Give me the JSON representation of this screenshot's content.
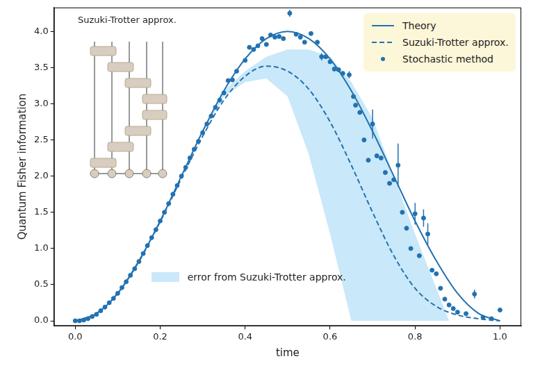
{
  "chart_data": {
    "type": "line",
    "x_label": "time",
    "y_label": "Quantum Fisher information",
    "xlim": [
      -0.05,
      1.05
    ],
    "ylim": [
      -0.07,
      4.33
    ],
    "xticks": [
      {
        "value": 0,
        "label": "0.0"
      },
      {
        "value": 0.2,
        "label": "0.2"
      },
      {
        "value": 0.4,
        "label": "0.4"
      },
      {
        "value": 0.6,
        "label": "0.6"
      },
      {
        "value": 0.8,
        "label": "0.8"
      },
      {
        "value": 1,
        "label": "1.0"
      }
    ],
    "yticks": [
      {
        "value": 0,
        "label": "0.0"
      },
      {
        "value": 0.5,
        "label": "0.5"
      },
      {
        "value": 1,
        "label": "1.0"
      },
      {
        "value": 1.5,
        "label": "1.5"
      },
      {
        "value": 2,
        "label": "2.0"
      },
      {
        "value": 2.5,
        "label": "2.5"
      },
      {
        "value": 3,
        "label": "3.0"
      },
      {
        "value": 3.5,
        "label": "3.5"
      },
      {
        "value": 4,
        "label": "4.0"
      }
    ],
    "grid": false,
    "legend": "upper right",
    "inset": {
      "title": "Suzuki-Trotter approx."
    },
    "error_band": {
      "label": "error from Suzuki-Trotter approx.",
      "color": "#c9e8f9",
      "x": [
        0.3,
        0.35,
        0.4,
        0.45,
        0.5,
        0.55,
        0.6,
        0.65,
        0.7,
        0.75,
        0.8,
        0.85,
        0.88
      ],
      "lower": [
        2.6,
        3.1,
        3.3,
        3.35,
        3.1,
        2.3,
        1.2,
        0.0,
        0.0,
        0.0,
        0.0,
        0.0,
        0.0
      ],
      "upper": [
        2.6,
        3.18,
        3.45,
        3.65,
        3.75,
        3.75,
        3.65,
        3.3,
        2.8,
        2.0,
        1.2,
        0.45,
        0.0
      ]
    },
    "series": [
      {
        "name": "Theory",
        "type": "line",
        "line_style": "solid",
        "color": "#2271b1",
        "x": [
          0,
          0.05,
          0.1,
          0.15,
          0.2,
          0.25,
          0.3,
          0.35,
          0.4,
          0.45,
          0.5,
          0.55,
          0.6,
          0.65,
          0.7,
          0.75,
          0.8,
          0.85,
          0.9,
          0.95,
          1
        ],
        "values": [
          0,
          0.1,
          0.38,
          0.83,
          1.38,
          2.0,
          2.62,
          3.18,
          3.62,
          3.9,
          4.0,
          3.9,
          3.62,
          3.18,
          2.62,
          2.0,
          1.38,
          0.83,
          0.38,
          0.1,
          0
        ]
      },
      {
        "name": "Suzuki-Trotter approx.",
        "type": "line",
        "line_style": "dashed",
        "color": "#2271b1",
        "x": [
          0,
          0.05,
          0.1,
          0.15,
          0.2,
          0.25,
          0.3,
          0.35,
          0.4,
          0.45,
          0.5,
          0.55,
          0.6,
          0.65,
          0.7,
          0.75,
          0.8,
          0.85,
          0.9,
          0.95,
          1
        ],
        "values": [
          0,
          0.1,
          0.38,
          0.82,
          1.37,
          1.97,
          2.55,
          3.05,
          3.38,
          3.52,
          3.45,
          3.2,
          2.75,
          2.15,
          1.5,
          0.9,
          0.45,
          0.2,
          0.08,
          0.03,
          0.0
        ]
      },
      {
        "name": "Stochastic method",
        "type": "scatter",
        "marker": "circle",
        "color": "#2271b1",
        "x": [
          0,
          0.01,
          0.02,
          0.03,
          0.04,
          0.05,
          0.06,
          0.07,
          0.08,
          0.09,
          0.1,
          0.11,
          0.12,
          0.13,
          0.14,
          0.15,
          0.16,
          0.17,
          0.18,
          0.19,
          0.2,
          0.21,
          0.22,
          0.23,
          0.24,
          0.25,
          0.26,
          0.27,
          0.28,
          0.29,
          0.3,
          0.31,
          0.32,
          0.33,
          0.34,
          0.35,
          0.36,
          0.37,
          0.38,
          0.4,
          0.41,
          0.42,
          0.43,
          0.44,
          0.45,
          0.46,
          0.47,
          0.48,
          0.49,
          0.505,
          0.52,
          0.53,
          0.54,
          0.555,
          0.57,
          0.58,
          0.59,
          0.6,
          0.61,
          0.62,
          0.63,
          0.645,
          0.655,
          0.66,
          0.67,
          0.68,
          0.69,
          0.7,
          0.71,
          0.72,
          0.73,
          0.74,
          0.75,
          0.76,
          0.77,
          0.78,
          0.79,
          0.8,
          0.81,
          0.82,
          0.83,
          0.84,
          0.85,
          0.86,
          0.87,
          0.88,
          0.89,
          0.9,
          0.92,
          0.94,
          0.96,
          0.98,
          1
        ],
        "values": [
          0,
          0,
          0.01,
          0.03,
          0.06,
          0.09,
          0.14,
          0.19,
          0.25,
          0.31,
          0.38,
          0.46,
          0.54,
          0.63,
          0.72,
          0.82,
          0.93,
          1.04,
          1.15,
          1.26,
          1.38,
          1.5,
          1.62,
          1.75,
          1.87,
          2.0,
          2.12,
          2.25,
          2.37,
          2.48,
          2.6,
          2.72,
          2.83,
          2.95,
          3.05,
          3.15,
          3.32,
          3.33,
          3.45,
          3.6,
          3.78,
          3.75,
          3.8,
          3.9,
          3.82,
          3.95,
          3.92,
          3.93,
          3.9,
          4.25,
          3.96,
          3.92,
          3.85,
          3.97,
          3.85,
          3.65,
          3.65,
          3.58,
          3.48,
          3.47,
          3.42,
          3.4,
          3.1,
          2.98,
          2.88,
          2.5,
          2.22,
          2.72,
          2.28,
          2.25,
          2.05,
          1.9,
          1.95,
          2.15,
          1.5,
          1.28,
          1.0,
          1.48,
          0.9,
          1.42,
          1.2,
          0.7,
          0.65,
          0.45,
          0.3,
          0.22,
          0.17,
          0.12,
          0.1,
          0.37,
          0.05,
          0.03,
          0.15
        ],
        "errors": [
          null,
          null,
          null,
          null,
          null,
          null,
          null,
          null,
          null,
          null,
          null,
          null,
          null,
          null,
          null,
          null,
          null,
          null,
          null,
          null,
          null,
          null,
          null,
          null,
          null,
          null,
          null,
          null,
          null,
          null,
          null,
          null,
          null,
          null,
          null,
          null,
          null,
          null,
          null,
          null,
          null,
          null,
          null,
          null,
          null,
          null,
          null,
          null,
          null,
          0.05,
          null,
          null,
          null,
          null,
          null,
          0.05,
          null,
          null,
          null,
          null,
          null,
          0.05,
          null,
          null,
          null,
          null,
          null,
          0.2,
          null,
          null,
          null,
          null,
          null,
          0.3,
          null,
          null,
          null,
          0.15,
          null,
          0.12,
          0.15,
          null,
          null,
          null,
          null,
          null,
          null,
          null,
          null,
          0.06,
          null,
          null,
          null
        ]
      }
    ]
  }
}
